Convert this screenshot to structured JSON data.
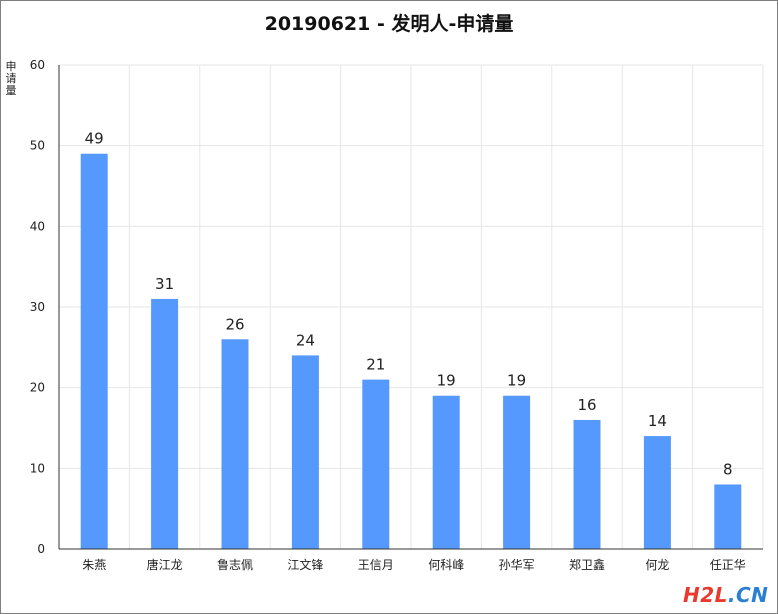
{
  "chart_data": {
    "type": "bar",
    "title": "20190621 - 发明人-申请量",
    "xlabel": "",
    "ylabel": "申请量",
    "categories": [
      "朱燕",
      "唐江龙",
      "鲁志佩",
      "江文锋",
      "王信月",
      "何科峰",
      "孙华军",
      "郑卫鑫",
      "何龙",
      "任正华"
    ],
    "values": [
      49,
      31,
      26,
      24,
      21,
      19,
      19,
      16,
      14,
      8
    ],
    "ylim": [
      0,
      60
    ],
    "yticks": [
      0,
      10,
      20,
      30,
      40,
      50,
      60
    ],
    "grid": true,
    "legend": "none",
    "bar_color": "#5599ff"
  },
  "watermark": {
    "brand": "H2L",
    "suffix": ".CN"
  }
}
